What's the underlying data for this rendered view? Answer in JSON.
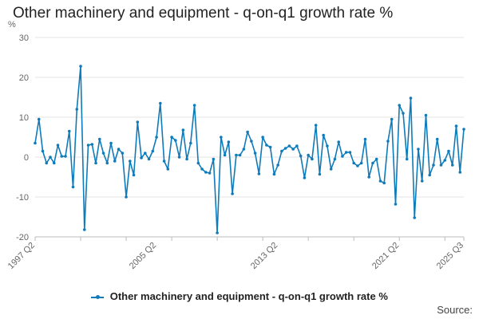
{
  "title": "Other machinery and equipment - q-on-q1 growth rate %",
  "source_label": "Source:",
  "colors": {
    "series": "#0f7bba",
    "grid": "#e3e3e3",
    "axis_text": "#666666"
  },
  "chart_data": {
    "type": "line",
    "title": "Other machinery and equipment - q-on-q1 growth rate %",
    "ylabel": "%",
    "xlabel": "",
    "ylim": [
      -20,
      30
    ],
    "yticks": [
      -20,
      -10,
      0,
      10,
      20,
      30
    ],
    "xtick_labels": [
      "1997 Q2",
      "2005 Q2",
      "2013 Q2",
      "2021 Q2",
      "2025 Q3"
    ],
    "grid": "horizontal",
    "legend_position": "bottom",
    "x_start": "1997 Q2",
    "x_end": "2025 Q3",
    "series": [
      {
        "name": "Other machinery and equipment - q-on-q1 growth rate %",
        "values": [
          3.5,
          9.5,
          1.5,
          -1.5,
          0,
          -1.5,
          3,
          0.2,
          0.2,
          6.5,
          -7.5,
          12,
          22.8,
          -18.2,
          3,
          3.2,
          -1.5,
          4.5,
          1,
          -1.5,
          3.5,
          -1,
          2,
          1,
          -10,
          -1,
          -4.5,
          8.8,
          -0.2,
          1,
          -0.5,
          1.5,
          5,
          13.5,
          -1,
          -3,
          5,
          4.2,
          0,
          6.8,
          -0.5,
          3.5,
          13,
          -1.5,
          -3,
          -3.8,
          -4,
          -0.5,
          -19,
          5,
          0.5,
          3.8,
          -9.2,
          0.5,
          0.5,
          2,
          6.3,
          4,
          1,
          -4.2,
          5,
          3,
          2.5,
          -4.3,
          -2,
          1.5,
          2.2,
          2.8,
          2,
          2.8,
          0.3,
          -5.2,
          0.5,
          -0.5,
          8,
          -4.3,
          5.5,
          2.8,
          -3,
          -0.5,
          3.8,
          0.2,
          1.2,
          1.2,
          -1.5,
          -2.2,
          -1.5,
          4.5,
          -5,
          -1.5,
          -0.5,
          -6,
          -6.5,
          4,
          9.5,
          -11.8,
          13,
          11,
          -0.5,
          14.8,
          -15.2,
          2,
          -6,
          10.5,
          -4.5,
          -2,
          4.5,
          -2,
          -0.8,
          1.5,
          -2,
          7.8,
          -3.8,
          7
        ]
      }
    ]
  }
}
